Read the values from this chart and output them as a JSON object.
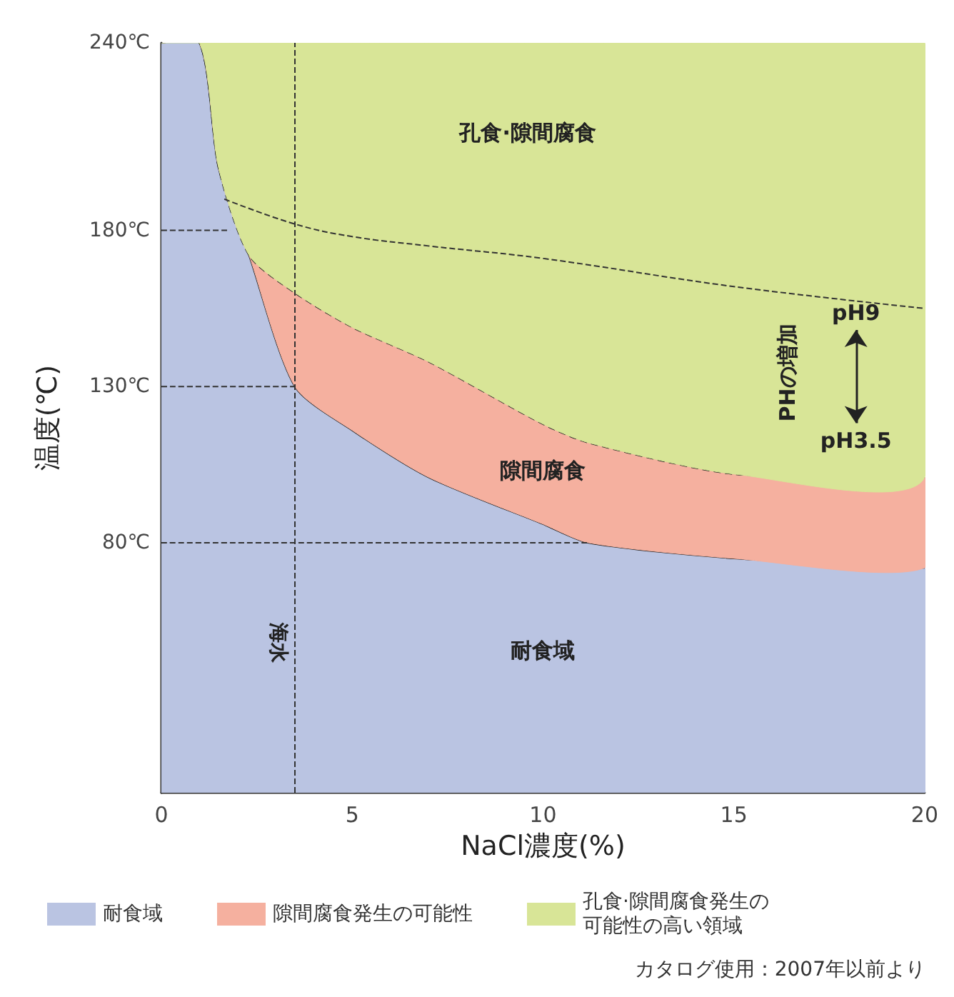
{
  "chart_data": {
    "type": "area",
    "stacked": true,
    "xlabel": "NaCl濃度(%)",
    "ylabel": "温度(℃)",
    "x": [
      0,
      1,
      1.5,
      2.3,
      3.5,
      5,
      7,
      10,
      11.2,
      15,
      20
    ],
    "xlim": [
      0,
      20
    ],
    "xticks": [
      0,
      5,
      10,
      15,
      20
    ],
    "ylim": [
      0,
      240
    ],
    "yticks": [
      {
        "value": 80,
        "label": "80℃"
      },
      {
        "value": 130,
        "label": "130℃"
      },
      {
        "value": 180,
        "label": "180℃"
      },
      {
        "value": 240,
        "label": "240℃"
      }
    ],
    "series": [
      {
        "name": "耐食域",
        "color": "#bac4e2",
        "line_style": "solid",
        "values": [
          240,
          240,
          200,
          172,
          130,
          116,
          101,
          86,
          80,
          75,
          72
        ]
      },
      {
        "name": "隙間腐食発生の可能性",
        "color": "#f5b09f",
        "line_style": "dashed",
        "values": [
          0,
          0,
          0,
          0,
          30,
          33,
          37,
          32,
          32,
          27,
          29
        ]
      },
      {
        "name": "孔食·隙間腐食発生の可能性の高い領域",
        "color": "#d8e597",
        "values": [
          0,
          0,
          40,
          68,
          80,
          91,
          102,
          122,
          128,
          138,
          139
        ]
      },
      {
        "type": "line",
        "color": "#333333",
        "line_style": "dashed",
        "x": [
          1.65,
          3.5,
          5,
          7,
          10,
          15,
          20
        ],
        "values": [
          190,
          182,
          178,
          175,
          171,
          162,
          155
        ]
      },
      {
        "type": "line",
        "color": "#333333",
        "line_style": "dashed",
        "x": [
          0,
          1.8
        ],
        "values": [
          180,
          180
        ]
      },
      {
        "type": "line",
        "color": "#333333",
        "line_style": "dashed",
        "x": [
          0,
          3.5
        ],
        "values": [
          130,
          130
        ]
      },
      {
        "type": "line",
        "color": "#333333",
        "line_style": "dashed",
        "x": [
          0,
          11.2
        ],
        "values": [
          80,
          80
        ]
      }
    ],
    "ref_lines": [
      {
        "axis": "x",
        "value": 3.5,
        "label": "海水",
        "line_style": "dashed",
        "color": "#333333"
      }
    ],
    "annotations": [
      "孔食·隙間腐食",
      "隙間腐食",
      "耐食域",
      "pH9",
      "pH3.5",
      "PHの増加",
      "カタログ使用：2007年以前より"
    ],
    "legend": "bottom",
    "grid": false
  }
}
